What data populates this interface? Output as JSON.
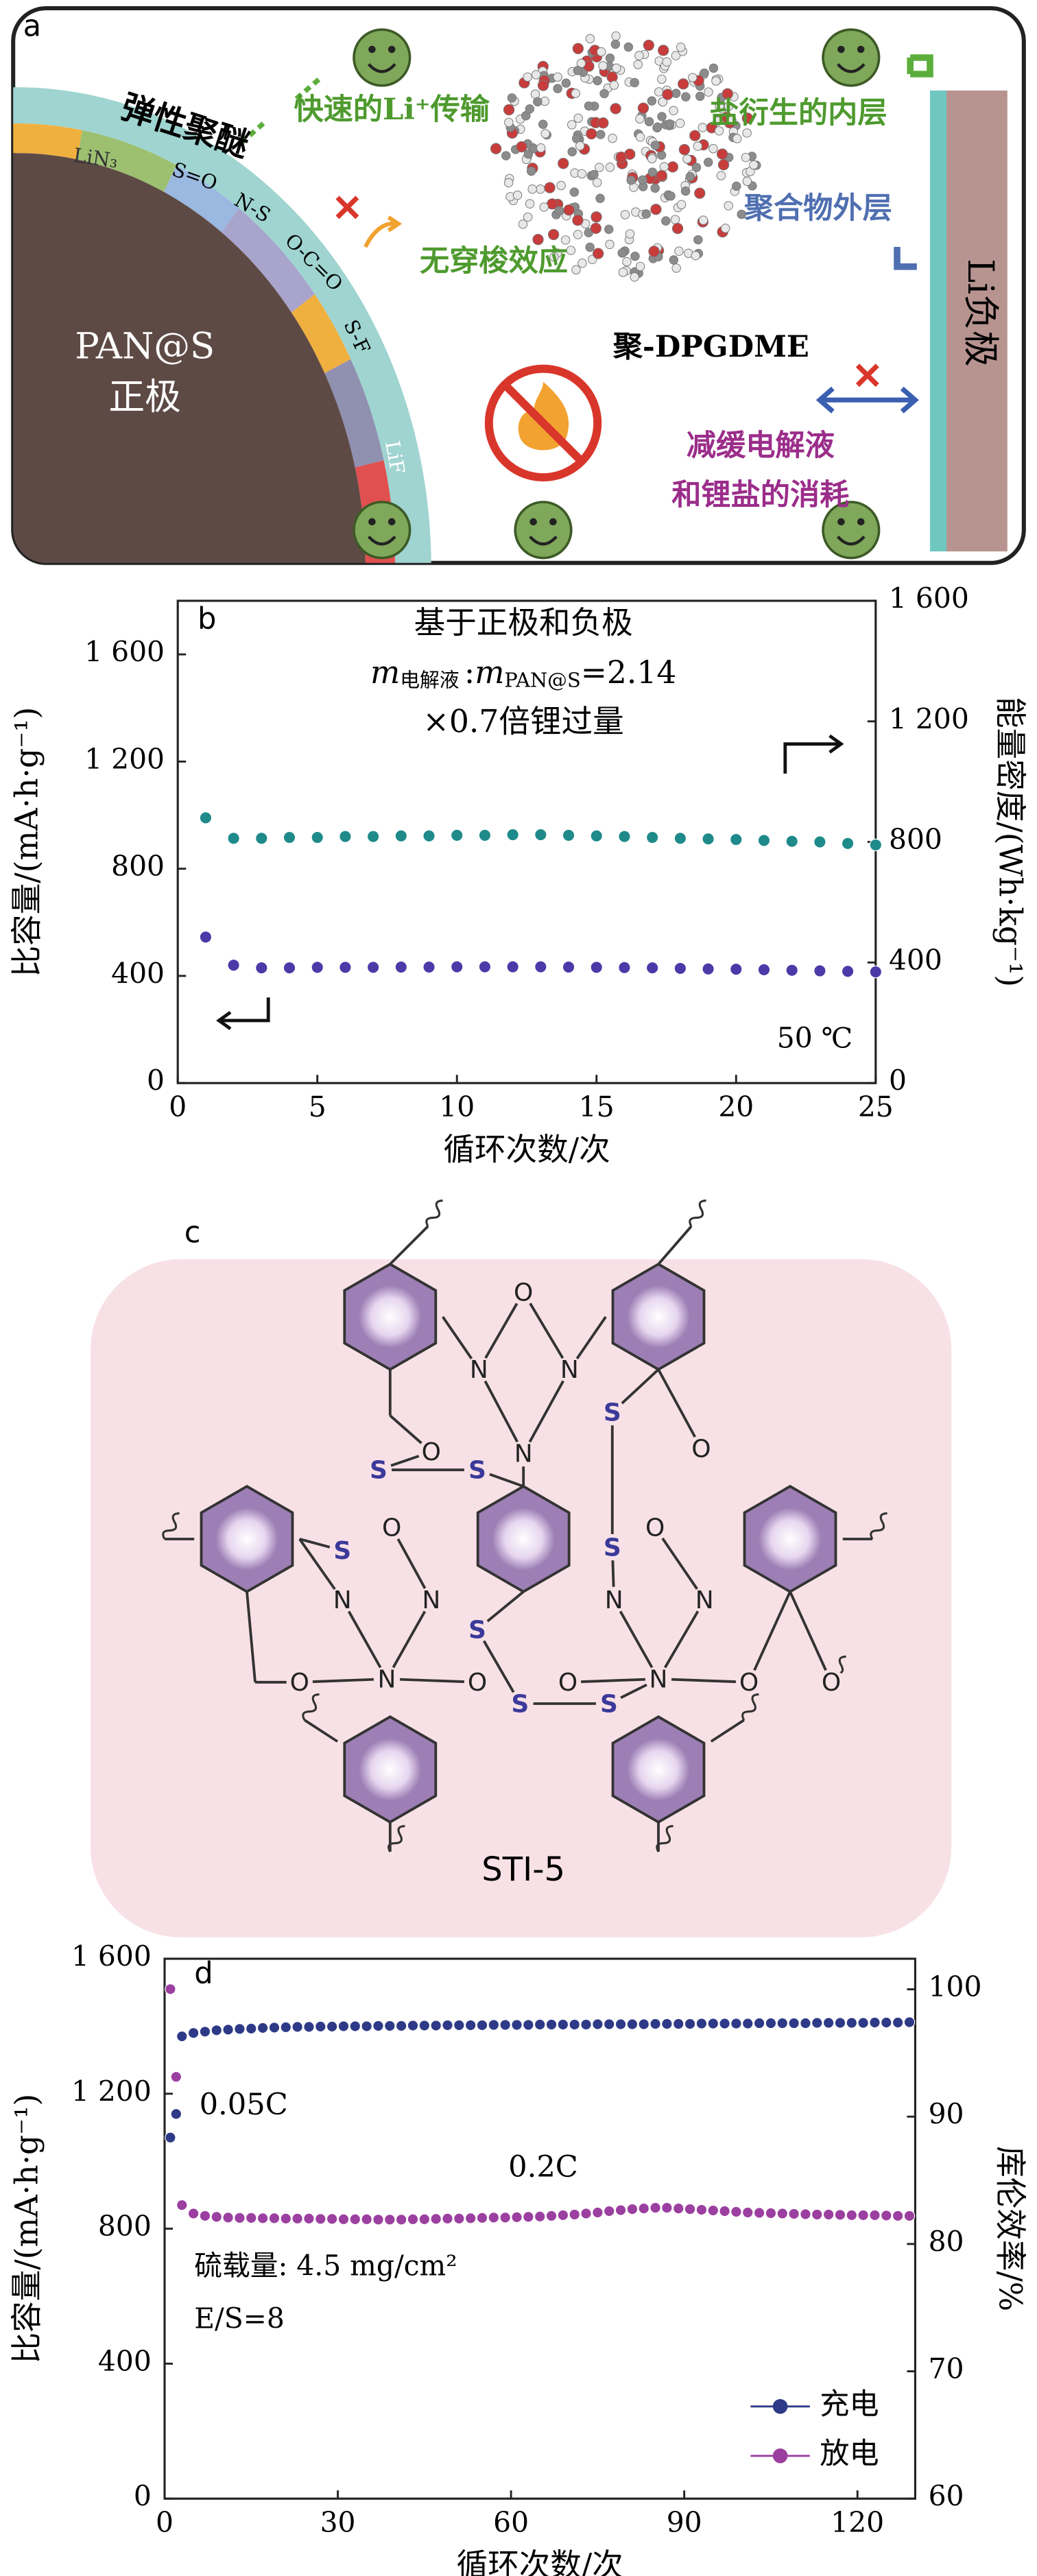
{
  "chart_data": [
    {
      "type": "scatter",
      "annotations": [
        "b",
        "基于正极和负极",
        "×0.7倍锂过量",
        "50 ℃"
      ],
      "formula": [
        "m",
        "电解液",
        ":",
        "m",
        "PAN@S",
        "=2.14"
      ],
      "xlabel": "循环次数/次",
      "ylabel": "比容量/(mA·h·g⁻¹)",
      "y2label": "能量密度/(Wh·kg⁻¹)",
      "x": [
        1,
        2,
        3,
        4,
        5,
        6,
        7,
        8,
        9,
        10,
        11,
        12,
        13,
        14,
        15,
        16,
        17,
        18,
        19,
        20,
        21,
        22,
        23,
        24,
        25
      ],
      "series": [
        {
          "color": "#1f8a8a",
          "axis": "y2",
          "values": [
            880,
            812,
            812,
            815,
            815,
            818,
            818,
            820,
            820,
            822,
            822,
            824,
            824,
            822,
            820,
            818,
            815,
            812,
            810,
            808,
            805,
            802,
            800,
            795,
            790
          ]
        },
        {
          "color": "#4b3aa8",
          "values": [
            545,
            440,
            430,
            430,
            432,
            432,
            432,
            433,
            433,
            434,
            434,
            434,
            434,
            433,
            432,
            431,
            430,
            428,
            426,
            425,
            423,
            421,
            419,
            417,
            415
          ]
        }
      ],
      "xlim": [
        0,
        25
      ],
      "xticks": [
        0,
        5,
        10,
        15,
        20,
        25
      ],
      "ylim": [
        0,
        1800
      ],
      "yticks": [
        0,
        400,
        800,
        {
          "value": 1200,
          "label": "1 200"
        },
        {
          "value": 1600,
          "label": "1 600"
        }
      ],
      "y2lim": [
        0,
        1600
      ],
      "y2ticks": [
        0,
        400,
        800,
        {
          "value": 1200,
          "label": "1 200"
        },
        {
          "value": 1600,
          "label": "1 600"
        }
      ]
    },
    {
      "type": "scatter",
      "annotations": [
        "d",
        "0.05C",
        "0.2C",
        "硫载量: 4.5 mg/cm²",
        "E/S=8"
      ],
      "xlabel": "循环次数/次",
      "ylabel": "比容量/(mA·h·g⁻¹)",
      "y2label": "库伦效率/%",
      "x": [
        1,
        2,
        3,
        5,
        7,
        9,
        11,
        13,
        15,
        17,
        19,
        21,
        23,
        25,
        27,
        29,
        31,
        33,
        35,
        37,
        39,
        41,
        43,
        45,
        47,
        49,
        51,
        53,
        55,
        57,
        59,
        61,
        63,
        65,
        67,
        69,
        71,
        73,
        75,
        77,
        79,
        81,
        83,
        85,
        87,
        89,
        91,
        93,
        95,
        97,
        99,
        101,
        103,
        105,
        107,
        109,
        111,
        113,
        115,
        117,
        119,
        121,
        123,
        125,
        127,
        129
      ],
      "series": [
        {
          "name": "充电",
          "color": "#2e3a87",
          "values": [
            1070,
            1140,
            1370,
            1380,
            1384,
            1388,
            1390,
            1392,
            1393,
            1395,
            1396,
            1397,
            1398,
            1398,
            1399,
            1399,
            1400,
            1400,
            1400,
            1401,
            1401,
            1401,
            1402,
            1402,
            1402,
            1403,
            1403,
            1403,
            1403,
            1404,
            1404,
            1404,
            1404,
            1405,
            1405,
            1405,
            1405,
            1405,
            1406,
            1406,
            1406,
            1406,
            1406,
            1407,
            1407,
            1407,
            1407,
            1408,
            1408,
            1408,
            1408,
            1408,
            1409,
            1409,
            1409,
            1409,
            1409,
            1410,
            1410,
            1410,
            1410,
            1410,
            1411,
            1411,
            1411,
            1412
          ]
        },
        {
          "name": "放电",
          "color": "#9b3fa0",
          "values": [
            1510,
            1250,
            870,
            845,
            838,
            835,
            833,
            832,
            832,
            831,
            831,
            830,
            830,
            830,
            829,
            829,
            828,
            828,
            828,
            827,
            827,
            827,
            828,
            828,
            829,
            830,
            830,
            831,
            832,
            833,
            833,
            834,
            835,
            836,
            838,
            840,
            842,
            845,
            848,
            852,
            855,
            858,
            860,
            862,
            862,
            860,
            858,
            856,
            854,
            852,
            850,
            848,
            847,
            846,
            845,
            844,
            843,
            842,
            842,
            841,
            840,
            840,
            840,
            839,
            838,
            838
          ]
        }
      ],
      "legend": "lower right",
      "xlim": [
        0,
        130
      ],
      "xticks": [
        0,
        30,
        60,
        90,
        120
      ],
      "ylim": [
        0,
        1600
      ],
      "yticks": [
        0,
        400,
        800,
        {
          "value": 1200,
          "label": "1 200"
        },
        {
          "value": 1600,
          "label": "1 600"
        }
      ],
      "y2lim": [
        60,
        102.4
      ],
      "y2ticks": [
        60,
        70,
        80,
        90,
        100
      ]
    }
  ],
  "panel_a": {
    "label": "a",
    "polymer": "弹性聚醚",
    "lin3": "LiN₃",
    "so": "S=O",
    "ns": "N-S",
    "oco": "O-C=O",
    "sf": "S-F",
    "lif": "LiF",
    "cathode1": "PAN@S",
    "cathode2": "正极",
    "fast": "快速的Li⁺传输",
    "noshuttle": "无穿梭效应",
    "inner": "盐衍生的内层",
    "outer": "聚合物外层",
    "anode": "Li负极",
    "dpgdme": "聚-DPGDME",
    "slow1": "减缓电解液",
    "slow2": "和锂盐的消耗"
  },
  "panel_c": {
    "label": "c",
    "name": "STI-5",
    "atoms": [
      "O",
      "N",
      "N",
      "N",
      "S",
      "O",
      "O",
      "S",
      "S",
      "S",
      "S",
      "O",
      "O",
      "N",
      "N",
      "N",
      "N",
      "S",
      "N",
      "O",
      "O",
      "O",
      "N",
      "O",
      "O",
      "S",
      "S"
    ]
  }
}
